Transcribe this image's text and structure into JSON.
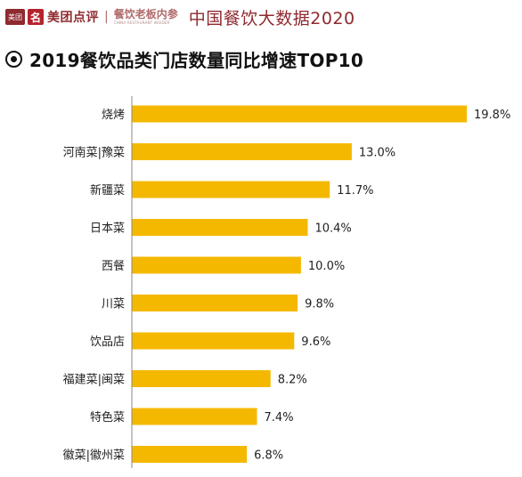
{
  "header": {
    "logo_mark": "美团",
    "logo_char": "名",
    "brand": "美团点评",
    "separator": "|",
    "sub_brand": "餐饮老板内参",
    "sub_brand_en": "CHINA RESTAURANT INSIDER",
    "report_title": "中国餐饮大数据2020"
  },
  "colors": {
    "bar": "#f5b800",
    "accent": "#8f2a2f"
  },
  "chart_data": {
    "type": "bar",
    "orientation": "horizontal",
    "title": "2019餐饮品类门店数量同比增速TOP10",
    "categories": [
      "烧烤",
      "河南菜|豫菜",
      "新疆菜",
      "日本菜",
      "西餐",
      "川菜",
      "饮品店",
      "福建菜|闽菜",
      "特色菜",
      "徽菜|徽州菜"
    ],
    "values": [
      19.8,
      13.0,
      11.7,
      10.4,
      10.0,
      9.8,
      9.6,
      8.2,
      7.4,
      6.8
    ],
    "labels": [
      "19.8%",
      "13.0%",
      "11.7%",
      "10.4%",
      "10.0%",
      "9.8%",
      "9.6%",
      "8.2%",
      "7.4%",
      "6.8%"
    ],
    "xlim": [
      0,
      19.8
    ],
    "grid": false,
    "legend": "none"
  }
}
